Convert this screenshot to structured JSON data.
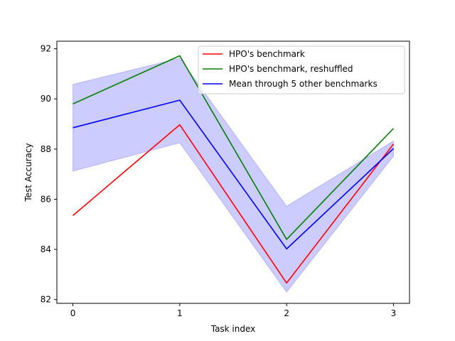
{
  "chart_data": {
    "type": "line",
    "title": "",
    "xlabel": "Task index",
    "ylabel": "Test Accuracy",
    "x": [
      0,
      1,
      2,
      3
    ],
    "xticks": [
      0,
      1,
      2,
      3
    ],
    "yticks": [
      82,
      84,
      86,
      88,
      90,
      92
    ],
    "xlim": [
      -0.15,
      3.15
    ],
    "ylim": [
      81.85,
      92.3
    ],
    "grid": false,
    "legend_position": "top-right",
    "series": [
      {
        "name": "HPO's benchmark",
        "color": "#ff0000",
        "values": [
          85.35,
          88.97,
          82.66,
          88.2
        ]
      },
      {
        "name": "HPO's benchmark, reshuffled",
        "color": "#008000",
        "values": [
          89.8,
          91.72,
          84.4,
          88.82
        ]
      },
      {
        "name": "Mean through 5 other benchmarks",
        "color": "#0000ff",
        "values": [
          88.85,
          89.95,
          84.02,
          88.02
        ]
      }
    ],
    "band": {
      "color": "#0000ff",
      "lower": [
        87.12,
        88.25,
        82.3,
        87.72
      ],
      "upper": [
        90.58,
        91.62,
        85.72,
        88.32
      ]
    }
  }
}
